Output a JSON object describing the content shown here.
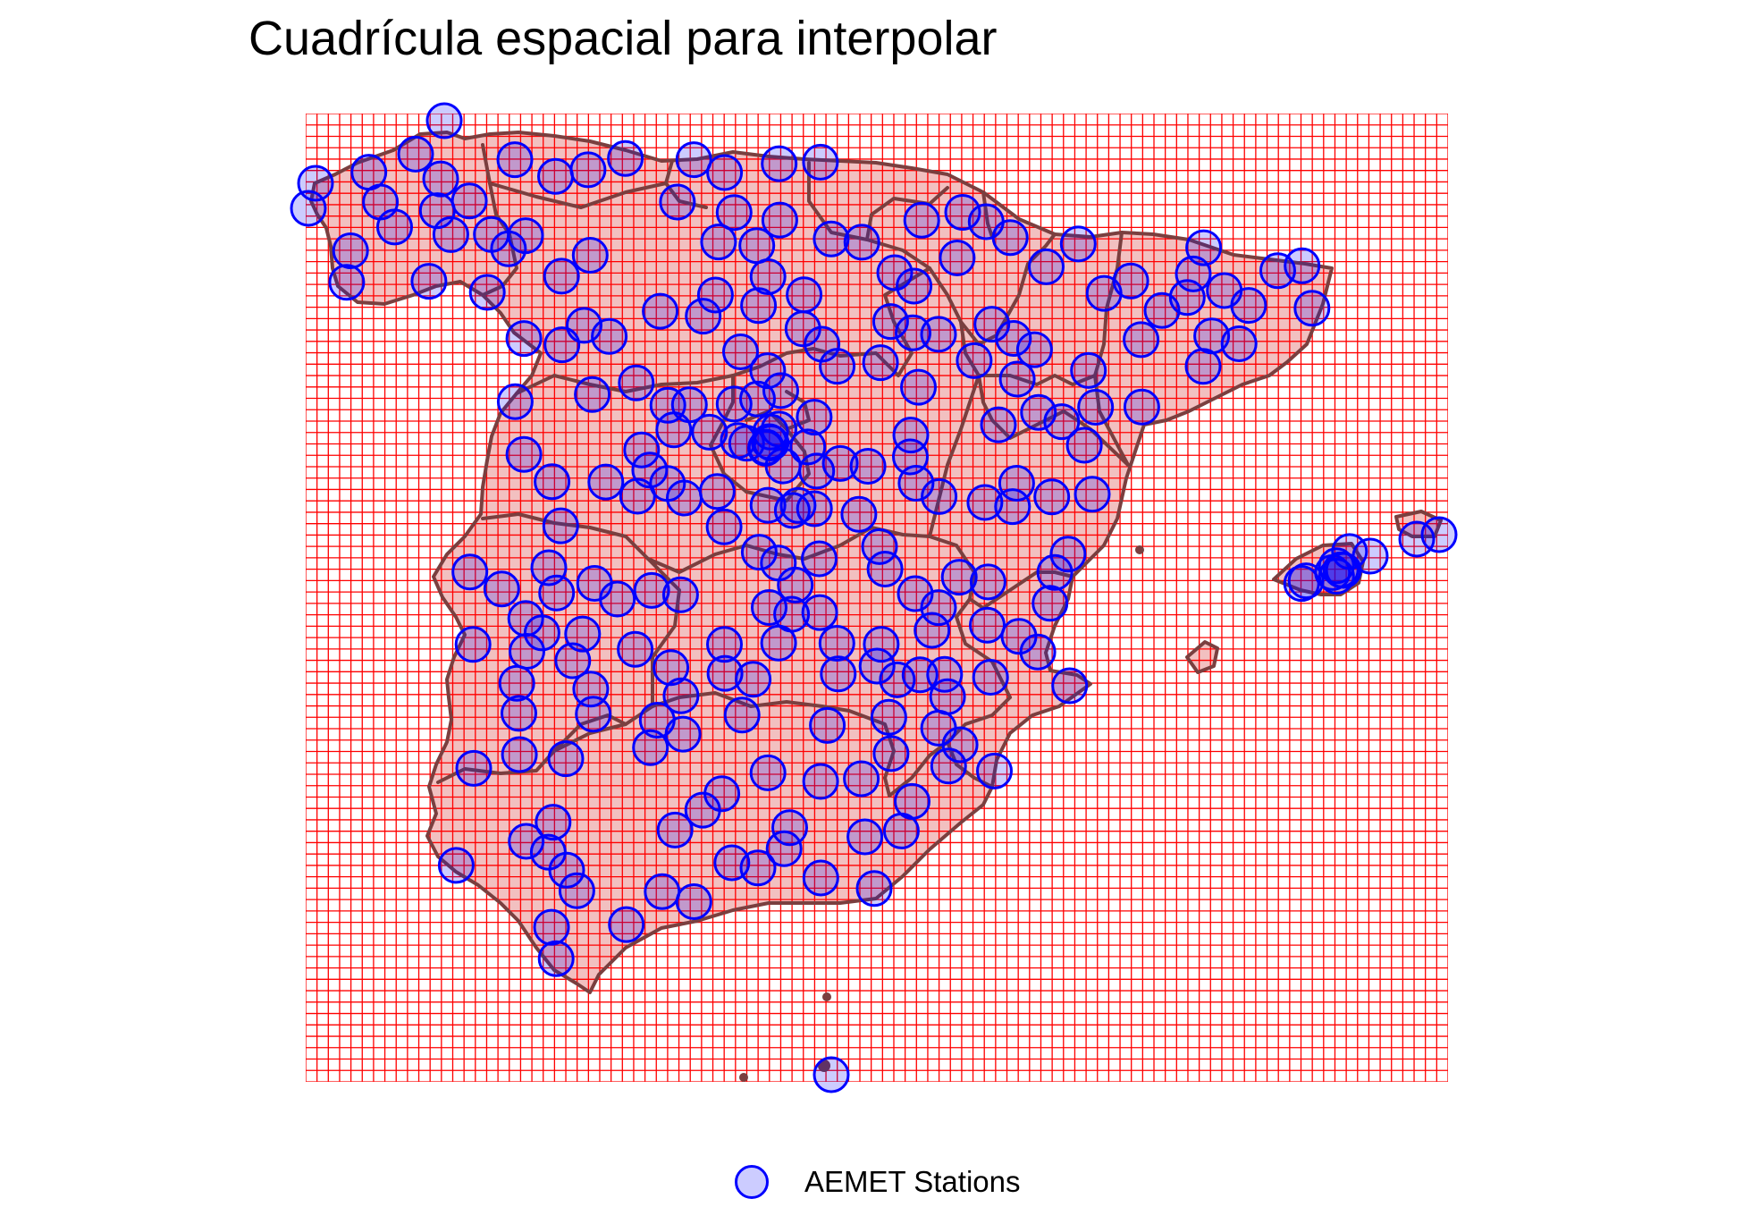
{
  "title": "Cuadrícula espacial para interpolar",
  "legend": {
    "label": "AEMET Stations"
  },
  "colors": {
    "grid": "#ff0000",
    "land_fill": "#f2c0c0",
    "border": "#7a3f3f",
    "station_stroke": "#0000ff",
    "station_fill": "#0000ff"
  },
  "grid": {
    "columns": 101,
    "rows": 85
  },
  "station_count": 247
}
